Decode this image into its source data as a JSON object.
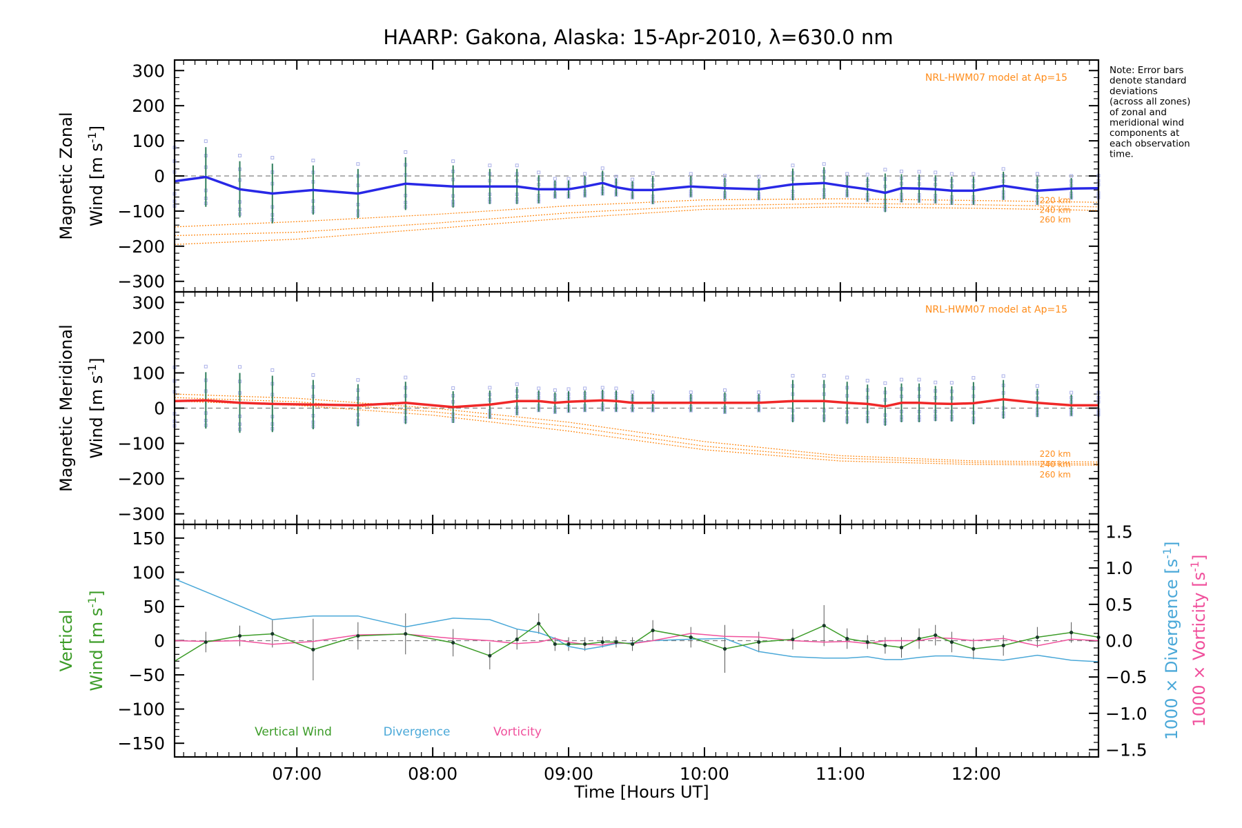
{
  "chart_data": {
    "type": "line",
    "title": "HAARP: Gakona,  Alaska: 15-Apr-2010, λ=630.0 nm",
    "xlabel": "Time [Hours UT]",
    "xlim": [
      6.1,
      12.9
    ],
    "x_ticks": [
      {
        "value": 7,
        "label": "07:00"
      },
      {
        "value": 8,
        "label": "08:00"
      },
      {
        "value": 9,
        "label": "09:00"
      },
      {
        "value": 10,
        "label": "10:00"
      },
      {
        "value": 11,
        "label": "11:00"
      },
      {
        "value": 12,
        "label": "12:00"
      }
    ],
    "note": [
      "Note: Error bars",
      "denote standard",
      "deviations",
      "(across all zones)",
      "of zonal and",
      "meridional wind",
      "components at",
      "each observation",
      "time."
    ],
    "colors": {
      "zonal": "#2828e6",
      "meridional": "#f02828",
      "model": "#ff8c1a",
      "samples": "#aab0e8",
      "vertical": "#3c9c28",
      "divergence": "#4aa8d8",
      "vorticity": "#f0509c",
      "zero_line": "#808080"
    },
    "panels": [
      {
        "id": "zonal",
        "ylabel_line1": "Magnetic Zonal",
        "ylabel_line2": "Wind [m s",
        "ylabel_sup": "-1",
        "ylabel_close": "]",
        "ylim": [
          -330,
          330
        ],
        "y_ticks": [
          -300,
          -200,
          -100,
          0,
          100,
          200,
          300
        ],
        "y_tick_labels": [
          "−300",
          "−200",
          "−100",
          "0",
          "100",
          "200",
          "300"
        ],
        "model_label": "NRL-HWM07 model at Ap=15",
        "altitude_labels": [
          "220 km",
          "240 km",
          "260 km"
        ],
        "x": [
          6.1,
          6.33,
          6.58,
          6.82,
          7.12,
          7.45,
          7.8,
          8.15,
          8.42,
          8.62,
          8.78,
          8.9,
          9.0,
          9.12,
          9.25,
          9.35,
          9.47,
          9.62,
          9.9,
          10.15,
          10.4,
          10.65,
          10.88,
          11.05,
          11.2,
          11.33,
          11.45,
          11.58,
          11.7,
          11.82,
          11.98,
          12.2,
          12.45,
          12.7,
          12.9
        ],
        "series": [
          {
            "name": "zonal wind",
            "values": [
              -15,
              -3,
              -38,
              -50,
              -40,
              -50,
              -22,
              -30,
              -30,
              -30,
              -38,
              -38,
              -38,
              -30,
              -20,
              -32,
              -40,
              -40,
              -30,
              -35,
              -38,
              -24,
              -20,
              -30,
              -38,
              -48,
              -35,
              -36,
              -38,
              -42,
              -42,
              -28,
              -42,
              -36,
              -35
            ],
            "errors": [
              80,
              85,
              80,
              85,
              70,
              70,
              75,
              60,
              50,
              50,
              40,
              25,
              25,
              30,
              35,
              25,
              25,
              40,
              30,
              30,
              30,
              45,
              45,
              30,
              35,
              55,
              40,
              40,
              40,
              40,
              40,
              40,
              40,
              30,
              30
            ]
          }
        ],
        "model": {
          "x": [
            6.1,
            7.0,
            8.0,
            9.0,
            10.0,
            11.0,
            12.0,
            12.9
          ],
          "curves": [
            {
              "values": [
                -145,
                -130,
                -110,
                -85,
                -68,
                -65,
                -70,
                -75
              ]
            },
            {
              "values": [
                -170,
                -160,
                -135,
                -105,
                -85,
                -78,
                -82,
                -88
              ]
            },
            {
              "values": [
                -195,
                -180,
                -150,
                -120,
                -95,
                -88,
                -92,
                -98
              ]
            }
          ]
        }
      },
      {
        "id": "meridional",
        "ylabel_line1": "Magnetic Meridional",
        "ylabel_line2": "Wind [m s",
        "ylabel_sup": "-1",
        "ylabel_close": "]",
        "ylim": [
          -330,
          330
        ],
        "y_ticks": [
          -300,
          -200,
          -100,
          0,
          100,
          200,
          300
        ],
        "y_tick_labels": [
          "−300",
          "−200",
          "−100",
          "0",
          "100",
          "200",
          "300"
        ],
        "model_label": "NRL-HWM07 model at Ap=15",
        "altitude_labels": [
          "220 km",
          "240 km",
          "260 km"
        ],
        "x": [
          6.1,
          6.33,
          6.58,
          6.82,
          7.12,
          7.45,
          7.8,
          8.15,
          8.42,
          8.62,
          8.78,
          8.9,
          9.0,
          9.12,
          9.25,
          9.35,
          9.47,
          9.62,
          9.9,
          10.15,
          10.4,
          10.65,
          10.88,
          11.05,
          11.2,
          11.33,
          11.45,
          11.58,
          11.7,
          11.82,
          11.98,
          12.2,
          12.45,
          12.7,
          12.9
        ],
        "series": [
          {
            "name": "meridional wind",
            "values": [
              20,
              22,
              15,
              12,
              10,
              8,
              15,
              3,
              10,
              20,
              20,
              15,
              18,
              20,
              22,
              20,
              15,
              15,
              15,
              15,
              15,
              20,
              20,
              15,
              12,
              5,
              15,
              15,
              13,
              12,
              14,
              25,
              15,
              8,
              8
            ],
            "errors": [
              80,
              80,
              85,
              80,
              70,
              60,
              60,
              45,
              40,
              40,
              30,
              30,
              30,
              30,
              30,
              30,
              25,
              25,
              25,
              30,
              25,
              60,
              60,
              60,
              55,
              55,
              55,
              55,
              50,
              50,
              60,
              55,
              40,
              30,
              30
            ]
          }
        ],
        "model": {
          "x": [
            6.1,
            7.0,
            8.0,
            9.0,
            10.0,
            11.0,
            12.0,
            12.9
          ],
          "curves": [
            {
              "values": [
                40,
                28,
                0,
                -40,
                -95,
                -135,
                -150,
                -153
              ]
            },
            {
              "values": [
                30,
                18,
                -10,
                -52,
                -108,
                -142,
                -155,
                -158
              ]
            },
            {
              "values": [
                20,
                8,
                -20,
                -65,
                -118,
                -150,
                -160,
                -162
              ]
            }
          ]
        }
      },
      {
        "id": "vertical",
        "ylabel_line1": "Vertical",
        "ylabel_line2": "Wind [m s",
        "ylabel_sup": "-1",
        "ylabel_close": "]",
        "ylim": [
          -170,
          170
        ],
        "y_ticks": [
          -150,
          -100,
          -50,
          0,
          50,
          100,
          150
        ],
        "y_tick_labels": [
          "−150",
          "−100",
          "−50",
          "0",
          "50",
          "100",
          "150"
        ],
        "right_axis": {
          "ylim": [
            -1.6,
            1.6
          ],
          "ticks": [
            -1.5,
            -1.0,
            -0.5,
            0.0,
            0.5,
            1.0,
            1.5
          ],
          "tick_labels": [
            "−1.5",
            "−1.0",
            "−0.5",
            "0.0",
            "0.5",
            "1.0",
            "1.5"
          ],
          "label_div_main": "1000 × Divergence [s",
          "label_vort_main": "1000 × Vorticity [s",
          "label_sup": "-1",
          "label_close": "]"
        },
        "legend": [
          "Vertical Wind",
          "Divergence",
          "Vorticity"
        ],
        "series": [
          {
            "name": "Vertical Wind",
            "x": [
              6.1,
              6.33,
              6.58,
              6.82,
              7.12,
              7.45,
              7.8,
              8.15,
              8.42,
              8.62,
              8.78,
              8.9,
              9.0,
              9.12,
              9.25,
              9.35,
              9.47,
              9.62,
              9.9,
              10.15,
              10.4,
              10.65,
              10.88,
              11.05,
              11.2,
              11.33,
              11.45,
              11.58,
              11.7,
              11.82,
              11.98,
              12.2,
              12.45,
              12.7,
              12.9
            ],
            "values": [
              -30,
              -2,
              7,
              10,
              -13,
              7,
              10,
              -3,
              -22,
              2,
              25,
              -5,
              -5,
              -5,
              -2,
              -2,
              -5,
              15,
              5,
              -12,
              -2,
              2,
              22,
              3,
              -2,
              -7,
              -10,
              3,
              8,
              -2,
              -12,
              -7,
              5,
              12,
              5
            ],
            "errors": [
              0,
              15,
              15,
              20,
              45,
              20,
              30,
              20,
              20,
              15,
              15,
              10,
              10,
              10,
              8,
              8,
              10,
              15,
              15,
              35,
              15,
              15,
              30,
              15,
              10,
              12,
              15,
              15,
              15,
              15,
              15,
              15,
              15,
              15,
              15
            ]
          },
          {
            "name": "Divergence",
            "axis": "right",
            "x": [
              6.1,
              6.45,
              6.82,
              7.12,
              7.45,
              7.8,
              8.15,
              8.42,
              8.62,
              8.78,
              8.9,
              9.0,
              9.12,
              9.25,
              9.35,
              9.47,
              9.62,
              9.9,
              10.15,
              10.4,
              10.65,
              10.88,
              11.05,
              11.2,
              11.33,
              11.45,
              11.58,
              11.7,
              11.82,
              11.98,
              12.2,
              12.45,
              12.7,
              12.9
            ],
            "values": [
              0.85,
              0.58,
              0.29,
              0.34,
              0.34,
              0.19,
              0.31,
              0.29,
              0.16,
              0.11,
              0.03,
              -0.08,
              -0.12,
              -0.08,
              -0.04,
              -0.03,
              0.0,
              0.02,
              0.03,
              -0.15,
              -0.22,
              -0.24,
              -0.24,
              -0.22,
              -0.26,
              -0.26,
              -0.23,
              -0.21,
              -0.21,
              -0.24,
              -0.27,
              -0.2,
              -0.27,
              -0.29
            ]
          },
          {
            "name": "Vorticity",
            "axis": "right",
            "x": [
              6.1,
              6.33,
              6.58,
              6.82,
              7.12,
              7.45,
              7.8,
              8.15,
              8.42,
              8.62,
              8.78,
              8.9,
              9.0,
              9.12,
              9.25,
              9.35,
              9.47,
              9.62,
              9.9,
              10.15,
              10.4,
              10.65,
              10.88,
              11.05,
              11.2,
              11.33,
              11.45,
              11.58,
              11.7,
              11.82,
              11.98,
              12.2,
              12.45,
              12.7,
              12.9
            ],
            "values": [
              0.0,
              -0.01,
              0.0,
              -0.05,
              -0.01,
              0.08,
              0.09,
              0.03,
              0.0,
              -0.04,
              -0.02,
              0.03,
              -0.02,
              -0.05,
              -0.06,
              -0.03,
              -0.04,
              0.0,
              0.1,
              0.06,
              0.05,
              0.0,
              -0.02,
              -0.01,
              -0.04,
              0.0,
              0.0,
              0.0,
              0.04,
              0.03,
              0.0,
              0.03,
              -0.07,
              0.02,
              0.0
            ]
          }
        ]
      }
    ]
  }
}
